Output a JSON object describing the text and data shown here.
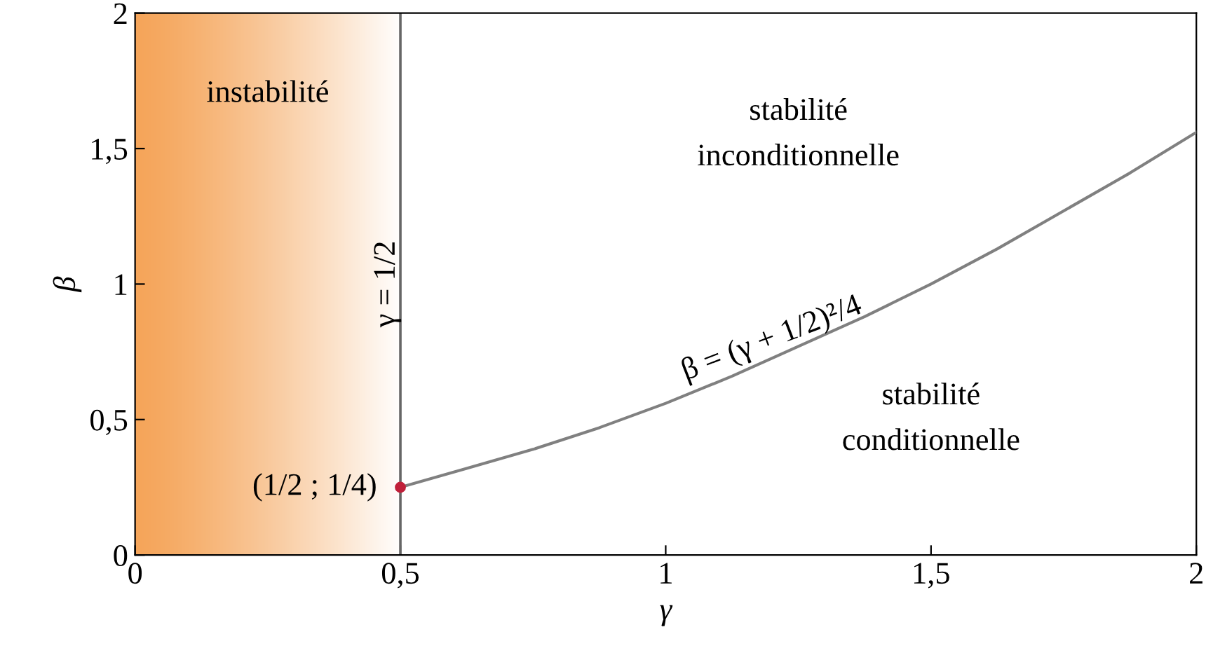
{
  "chart_data": {
    "type": "line",
    "xlabel": "γ",
    "ylabel": "β",
    "xlim": [
      0,
      2
    ],
    "ylim": [
      0,
      2
    ],
    "xticks": [
      0,
      {
        "value": 0.5,
        "label": "0,5"
      },
      1,
      {
        "value": 1.5,
        "label": "1,5"
      },
      2
    ],
    "yticks": [
      0,
      {
        "value": 0.5,
        "label": "0,5"
      },
      1,
      {
        "value": 1.5,
        "label": "1,5"
      },
      2
    ],
    "grid": false,
    "series": [
      {
        "color": "#808080",
        "x": [
          0.5,
          0.625,
          0.75,
          0.875,
          1,
          1.125,
          1.25,
          1.375,
          1.5,
          1.625,
          1.75,
          1.875,
          2
        ],
        "values": [
          0.25,
          0.32,
          0.39,
          0.47,
          0.56,
          0.66,
          0.77,
          0.88,
          1.0,
          1.13,
          1.27,
          1.41,
          1.56
        ]
      },
      {
        "type": "scatter",
        "color": "#c0203a",
        "x": [
          0.5
        ],
        "values": [
          0.25
        ]
      }
    ],
    "bands": [
      {
        "axis": "x",
        "from": 0,
        "to": 0.5,
        "label": "instabilité",
        "color": "#f5a55a"
      }
    ],
    "ref_lines": [
      {
        "axis": "x",
        "value": 0.5,
        "label": "γ = 1/2",
        "color": "#666666"
      }
    ],
    "annotations": [
      {
        "text": "(1/2 ; 1/4)",
        "x": 0.5,
        "y": 0.25
      },
      {
        "text": "β = (γ + 1/2)²/4",
        "x": 1.2,
        "y": 0.71
      },
      "stabilité\ninconditionnelle",
      "stabilité\nconditionnelle"
    ]
  }
}
